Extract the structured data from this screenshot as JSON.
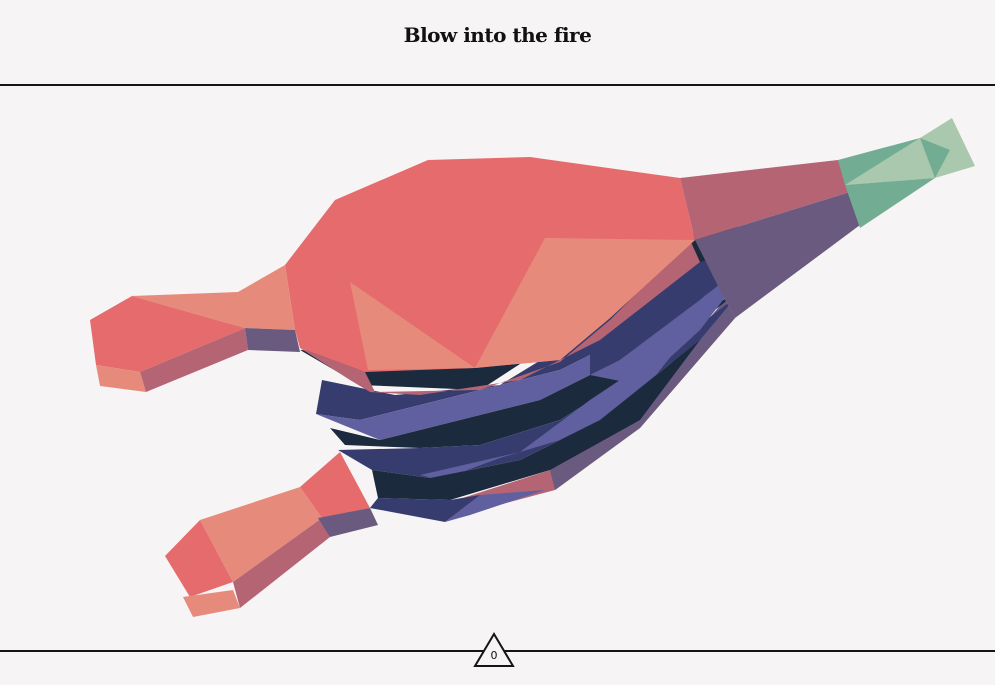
{
  "header": {
    "title": "Blow into the fire"
  },
  "blow_counter": {
    "value": "0",
    "shape_icon": "triangle-icon"
  },
  "colors": {
    "background": "#f6f4f5",
    "line": "#151515",
    "handle_red": "#e66b6d",
    "handle_salmon": "#e68b7b",
    "handle_side": "#b56474",
    "bellows_navy": "#1c2a3e",
    "bellows_indigo": "#363c6e",
    "bellows_violet": "#6060a0",
    "nozzle_green": "#72ad93",
    "nozzle_light": "#a9c8ad"
  }
}
